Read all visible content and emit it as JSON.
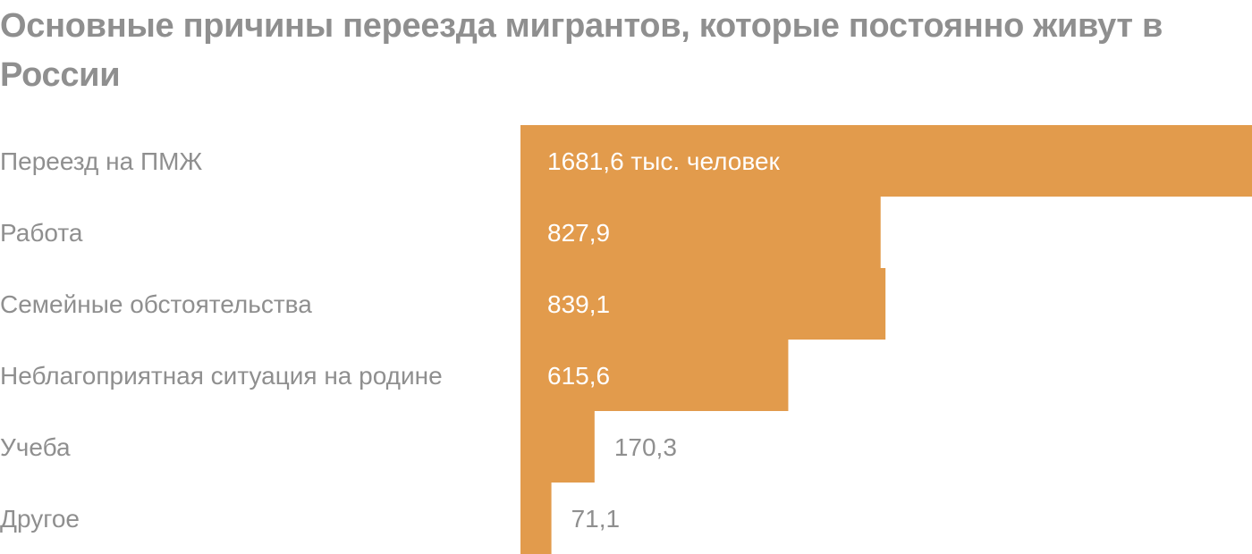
{
  "chart_data": {
    "type": "bar",
    "orientation": "horizontal",
    "title": "Основные причины переезда мигрантов, которые постоянно живут в России",
    "xlabel": "",
    "ylabel": "",
    "unit": "тыс. человек",
    "grid": false,
    "legend": "none",
    "categories": [
      "Переезд на ПМЖ",
      "Работа",
      "Семейные обстоятельства",
      "Неблагоприятная ситуация на родине",
      "Учеба",
      "Другое"
    ],
    "values": [
      1681.6,
      827.9,
      839.1,
      615.6,
      170.3,
      71.1
    ],
    "value_labels": [
      "1681,6 тыс. человек",
      "827,9",
      "839,1",
      "615,6",
      "170,3",
      "71,1"
    ],
    "xlim": [
      0,
      1681.6
    ],
    "colors": {
      "bar": "#e29b4c",
      "label_on_bar": "#ffffff",
      "label_outside": "#8f8f8f",
      "title": "#8f8f8f",
      "category": "#8f8f8f"
    }
  }
}
